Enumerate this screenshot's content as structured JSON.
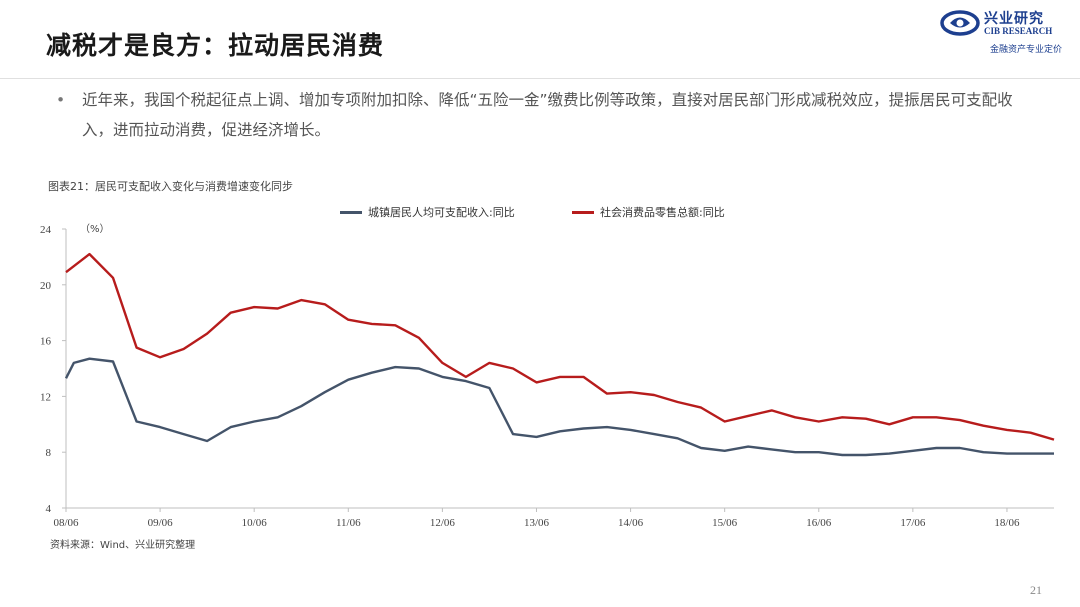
{
  "slide": {
    "title": "减税才是良方：拉动居民消费",
    "bullet_mark": "•",
    "bullet": "近年来，我国个税起征点上调、增加专项附加扣除、降低“五险一金”缴费比例等政策，直接对居民部门形成减税效应，提振居民可支配收入，进而拉动消费，促进经济增长。",
    "page_number": "21"
  },
  "logo": {
    "name": "兴业研究",
    "name_en": "CIB RESEARCH",
    "tagline": "金融资产专业定价",
    "color": "#1d3f8f"
  },
  "chart_caption": "图表21：居民可支配收入变化与消费增速变化同步",
  "source": "资料来源：Wind、兴业研究整理",
  "chart_data": {
    "type": "line",
    "unit_label": "（%）",
    "ylim": [
      4,
      24
    ],
    "yticks": [
      "4",
      "8",
      "12",
      "16",
      "20",
      "24"
    ],
    "xlim": [
      "2008-06",
      "2018-12"
    ],
    "xticks": [
      "08/06",
      "09/06",
      "10/06",
      "11/06",
      "12/06",
      "13/06",
      "14/06",
      "15/06",
      "16/06",
      "17/06",
      "18/06"
    ],
    "grid": false,
    "legend_position": "top",
    "series": [
      {
        "name": "城镇居民人均可支配收入:同比",
        "color": "#44546a",
        "points": [
          [
            "2008-06",
            13.3
          ],
          [
            "2008-07",
            14.4
          ],
          [
            "2008-09",
            14.7
          ],
          [
            "2008-12",
            14.5
          ],
          [
            "2009-03",
            10.2
          ],
          [
            "2009-06",
            9.8
          ],
          [
            "2009-09",
            9.3
          ],
          [
            "2009-12",
            8.8
          ],
          [
            "2010-03",
            9.8
          ],
          [
            "2010-06",
            10.2
          ],
          [
            "2010-09",
            10.5
          ],
          [
            "2010-12",
            11.3
          ],
          [
            "2011-03",
            12.3
          ],
          [
            "2011-06",
            13.2
          ],
          [
            "2011-09",
            13.7
          ],
          [
            "2011-12",
            14.1
          ],
          [
            "2012-03",
            14.0
          ],
          [
            "2012-06",
            13.4
          ],
          [
            "2012-09",
            13.1
          ],
          [
            "2012-12",
            12.6
          ],
          [
            "2013-03",
            9.3
          ],
          [
            "2013-06",
            9.1
          ],
          [
            "2013-09",
            9.5
          ],
          [
            "2013-12",
            9.7
          ],
          [
            "2014-03",
            9.8
          ],
          [
            "2014-06",
            9.6
          ],
          [
            "2014-09",
            9.3
          ],
          [
            "2014-12",
            9.0
          ],
          [
            "2015-03",
            8.3
          ],
          [
            "2015-06",
            8.1
          ],
          [
            "2015-09",
            8.4
          ],
          [
            "2015-12",
            8.2
          ],
          [
            "2016-03",
            8.0
          ],
          [
            "2016-06",
            8.0
          ],
          [
            "2016-09",
            7.8
          ],
          [
            "2016-12",
            7.8
          ],
          [
            "2017-03",
            7.9
          ],
          [
            "2017-06",
            8.1
          ],
          [
            "2017-09",
            8.3
          ],
          [
            "2017-12",
            8.3
          ],
          [
            "2018-03",
            8.0
          ],
          [
            "2018-06",
            7.9
          ],
          [
            "2018-09",
            7.9
          ],
          [
            "2018-12",
            7.9
          ]
        ]
      },
      {
        "name": "社会消费品零售总额:同比",
        "color": "#b71c1c",
        "points": [
          [
            "2008-06",
            20.9
          ],
          [
            "2008-09",
            22.2
          ],
          [
            "2008-12",
            20.5
          ],
          [
            "2009-03",
            15.5
          ],
          [
            "2009-06",
            14.8
          ],
          [
            "2009-09",
            15.4
          ],
          [
            "2009-12",
            16.5
          ],
          [
            "2010-03",
            18.0
          ],
          [
            "2010-06",
            18.4
          ],
          [
            "2010-09",
            18.3
          ],
          [
            "2010-12",
            18.9
          ],
          [
            "2011-03",
            18.6
          ],
          [
            "2011-06",
            17.5
          ],
          [
            "2011-09",
            17.2
          ],
          [
            "2011-12",
            17.1
          ],
          [
            "2012-03",
            16.2
          ],
          [
            "2012-06",
            14.4
          ],
          [
            "2012-09",
            13.4
          ],
          [
            "2012-12",
            14.4
          ],
          [
            "2013-03",
            14.0
          ],
          [
            "2013-06",
            13.0
          ],
          [
            "2013-09",
            13.4
          ],
          [
            "2013-12",
            13.4
          ],
          [
            "2014-03",
            12.2
          ],
          [
            "2014-06",
            12.3
          ],
          [
            "2014-09",
            12.1
          ],
          [
            "2014-12",
            11.6
          ],
          [
            "2015-03",
            11.2
          ],
          [
            "2015-06",
            10.2
          ],
          [
            "2015-09",
            10.6
          ],
          [
            "2015-12",
            11.0
          ],
          [
            "2016-03",
            10.5
          ],
          [
            "2016-06",
            10.2
          ],
          [
            "2016-09",
            10.5
          ],
          [
            "2016-12",
            10.4
          ],
          [
            "2017-03",
            10.0
          ],
          [
            "2017-06",
            10.5
          ],
          [
            "2017-09",
            10.5
          ],
          [
            "2017-12",
            10.3
          ],
          [
            "2018-03",
            9.9
          ],
          [
            "2018-06",
            9.6
          ],
          [
            "2018-09",
            9.4
          ],
          [
            "2018-12",
            8.9
          ]
        ]
      }
    ]
  }
}
